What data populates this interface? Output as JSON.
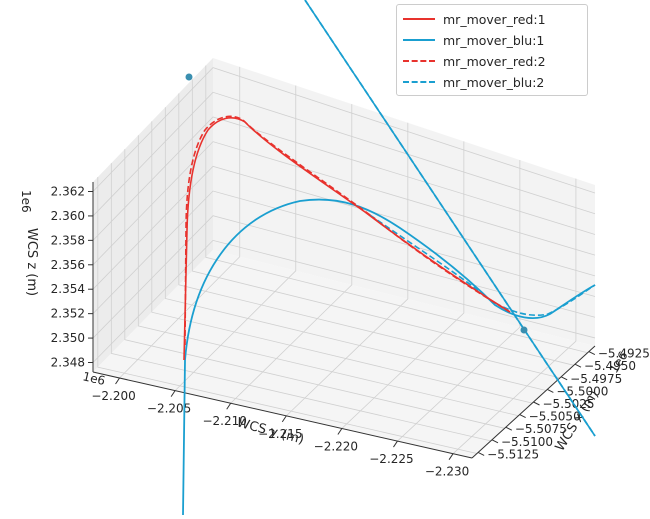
{
  "chart_data": {
    "type": "line",
    "projection": "3d",
    "xlabel": "WCS x (m)",
    "ylabel": "WCS y (m)",
    "zlabel": "WCS z (m)",
    "x_offset_label": "1e6",
    "y_offset_label": "1e6",
    "z_offset_label": "1e6",
    "x_ticks": [
      "−5.4925",
      "−5.4950",
      "−5.4975",
      "−5.5000",
      "−5.5025",
      "−5.5050",
      "−5.5075",
      "−5.5100",
      "−5.5125"
    ],
    "y_ticks": [
      "−2.200",
      "−2.205",
      "−2.210",
      "−2.215",
      "−2.220",
      "−2.225",
      "−2.230"
    ],
    "z_ticks": [
      "2.362",
      "2.360",
      "2.358",
      "2.356",
      "2.354",
      "2.352",
      "2.350",
      "2.348"
    ],
    "grid": true,
    "legend_position": "top-right",
    "series": [
      {
        "name": "mr_mover_red:1",
        "color": "#e8322d",
        "style": "solid"
      },
      {
        "name": "mr_mover_blu:1",
        "color": "#1a9fd0",
        "style": "solid"
      },
      {
        "name": "mr_mover_red:2",
        "color": "#e8322d",
        "style": "dashed"
      },
      {
        "name": "mr_mover_blu:2",
        "color": "#1a9fd0",
        "style": "dashed"
      }
    ]
  }
}
